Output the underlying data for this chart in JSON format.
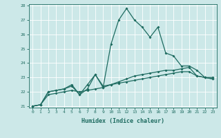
{
  "xlabel": "Humidex (Indice chaleur)",
  "ylabel": "",
  "background_color": "#cce8e8",
  "line_color": "#1e6b60",
  "x": [
    0,
    1,
    2,
    3,
    4,
    5,
    6,
    7,
    8,
    9,
    10,
    11,
    12,
    13,
    14,
    15,
    16,
    17,
    18,
    19,
    20,
    21,
    22,
    23
  ],
  "line1": [
    21.0,
    21.1,
    22.0,
    22.1,
    22.2,
    22.4,
    21.8,
    22.2,
    23.2,
    22.3,
    25.3,
    27.0,
    27.8,
    27.0,
    26.5,
    25.8,
    26.5,
    24.7,
    24.5,
    23.8,
    23.8,
    23.5,
    23.0,
    23.0
  ],
  "line2": [
    21.0,
    21.1,
    22.0,
    22.1,
    22.2,
    22.5,
    21.8,
    22.5,
    23.2,
    22.4,
    22.5,
    22.7,
    22.9,
    23.1,
    23.2,
    23.3,
    23.4,
    23.5,
    23.5,
    23.6,
    23.7,
    23.1,
    23.0,
    22.9
  ],
  "line3": [
    21.0,
    21.1,
    21.8,
    21.9,
    22.0,
    22.1,
    22.0,
    22.1,
    22.2,
    22.3,
    22.5,
    22.6,
    22.7,
    22.8,
    22.9,
    23.0,
    23.1,
    23.2,
    23.3,
    23.4,
    23.4,
    23.1,
    23.0,
    22.9
  ],
  "ylim": [
    21,
    28
  ],
  "xlim": [
    -0.5,
    23.5
  ],
  "yticks": [
    21,
    22,
    23,
    24,
    25,
    26,
    27,
    28
  ],
  "xticks": [
    0,
    1,
    2,
    3,
    4,
    5,
    6,
    7,
    8,
    9,
    10,
    11,
    12,
    13,
    14,
    15,
    16,
    17,
    18,
    19,
    20,
    21,
    22,
    23
  ]
}
